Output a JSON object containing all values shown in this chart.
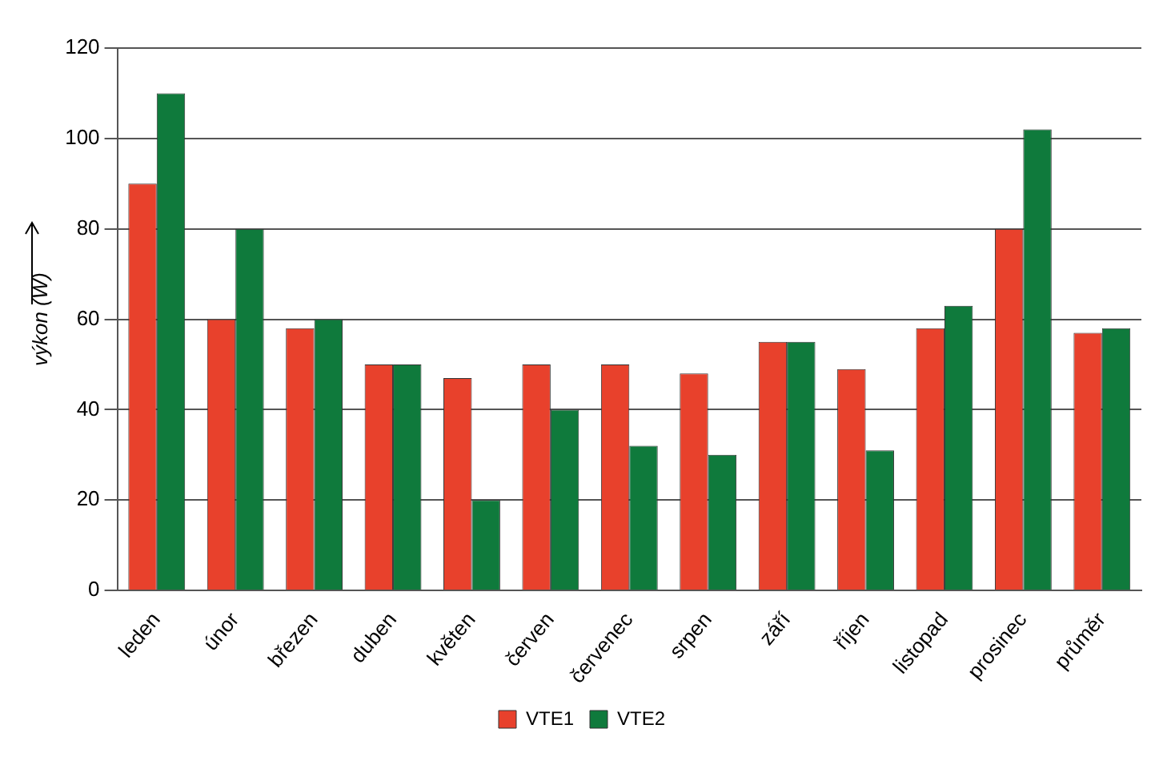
{
  "chart_data": {
    "type": "bar",
    "ylabel": "výkon (W)",
    "categories": [
      "leden",
      "únor",
      "březen",
      "duben",
      "květen",
      "červen",
      "červenec",
      "srpen",
      "září",
      "říjen",
      "listopad",
      "prosinec",
      "průměr"
    ],
    "series": [
      {
        "name": "VTE1",
        "color": "#e8412c",
        "values": [
          90,
          60,
          58,
          50,
          47,
          50,
          50,
          48,
          55,
          49,
          58,
          80,
          57
        ]
      },
      {
        "name": "VTE2",
        "color": "#0f7a3c",
        "values": [
          110,
          80,
          60,
          50,
          20,
          40,
          32,
          30,
          55,
          31,
          63,
          102,
          58
        ]
      }
    ],
    "ylim": [
      0,
      120
    ],
    "yticks": [
      0,
      20,
      40,
      60,
      80,
      100,
      120
    ],
    "grid": "y",
    "legend": "bottom"
  }
}
